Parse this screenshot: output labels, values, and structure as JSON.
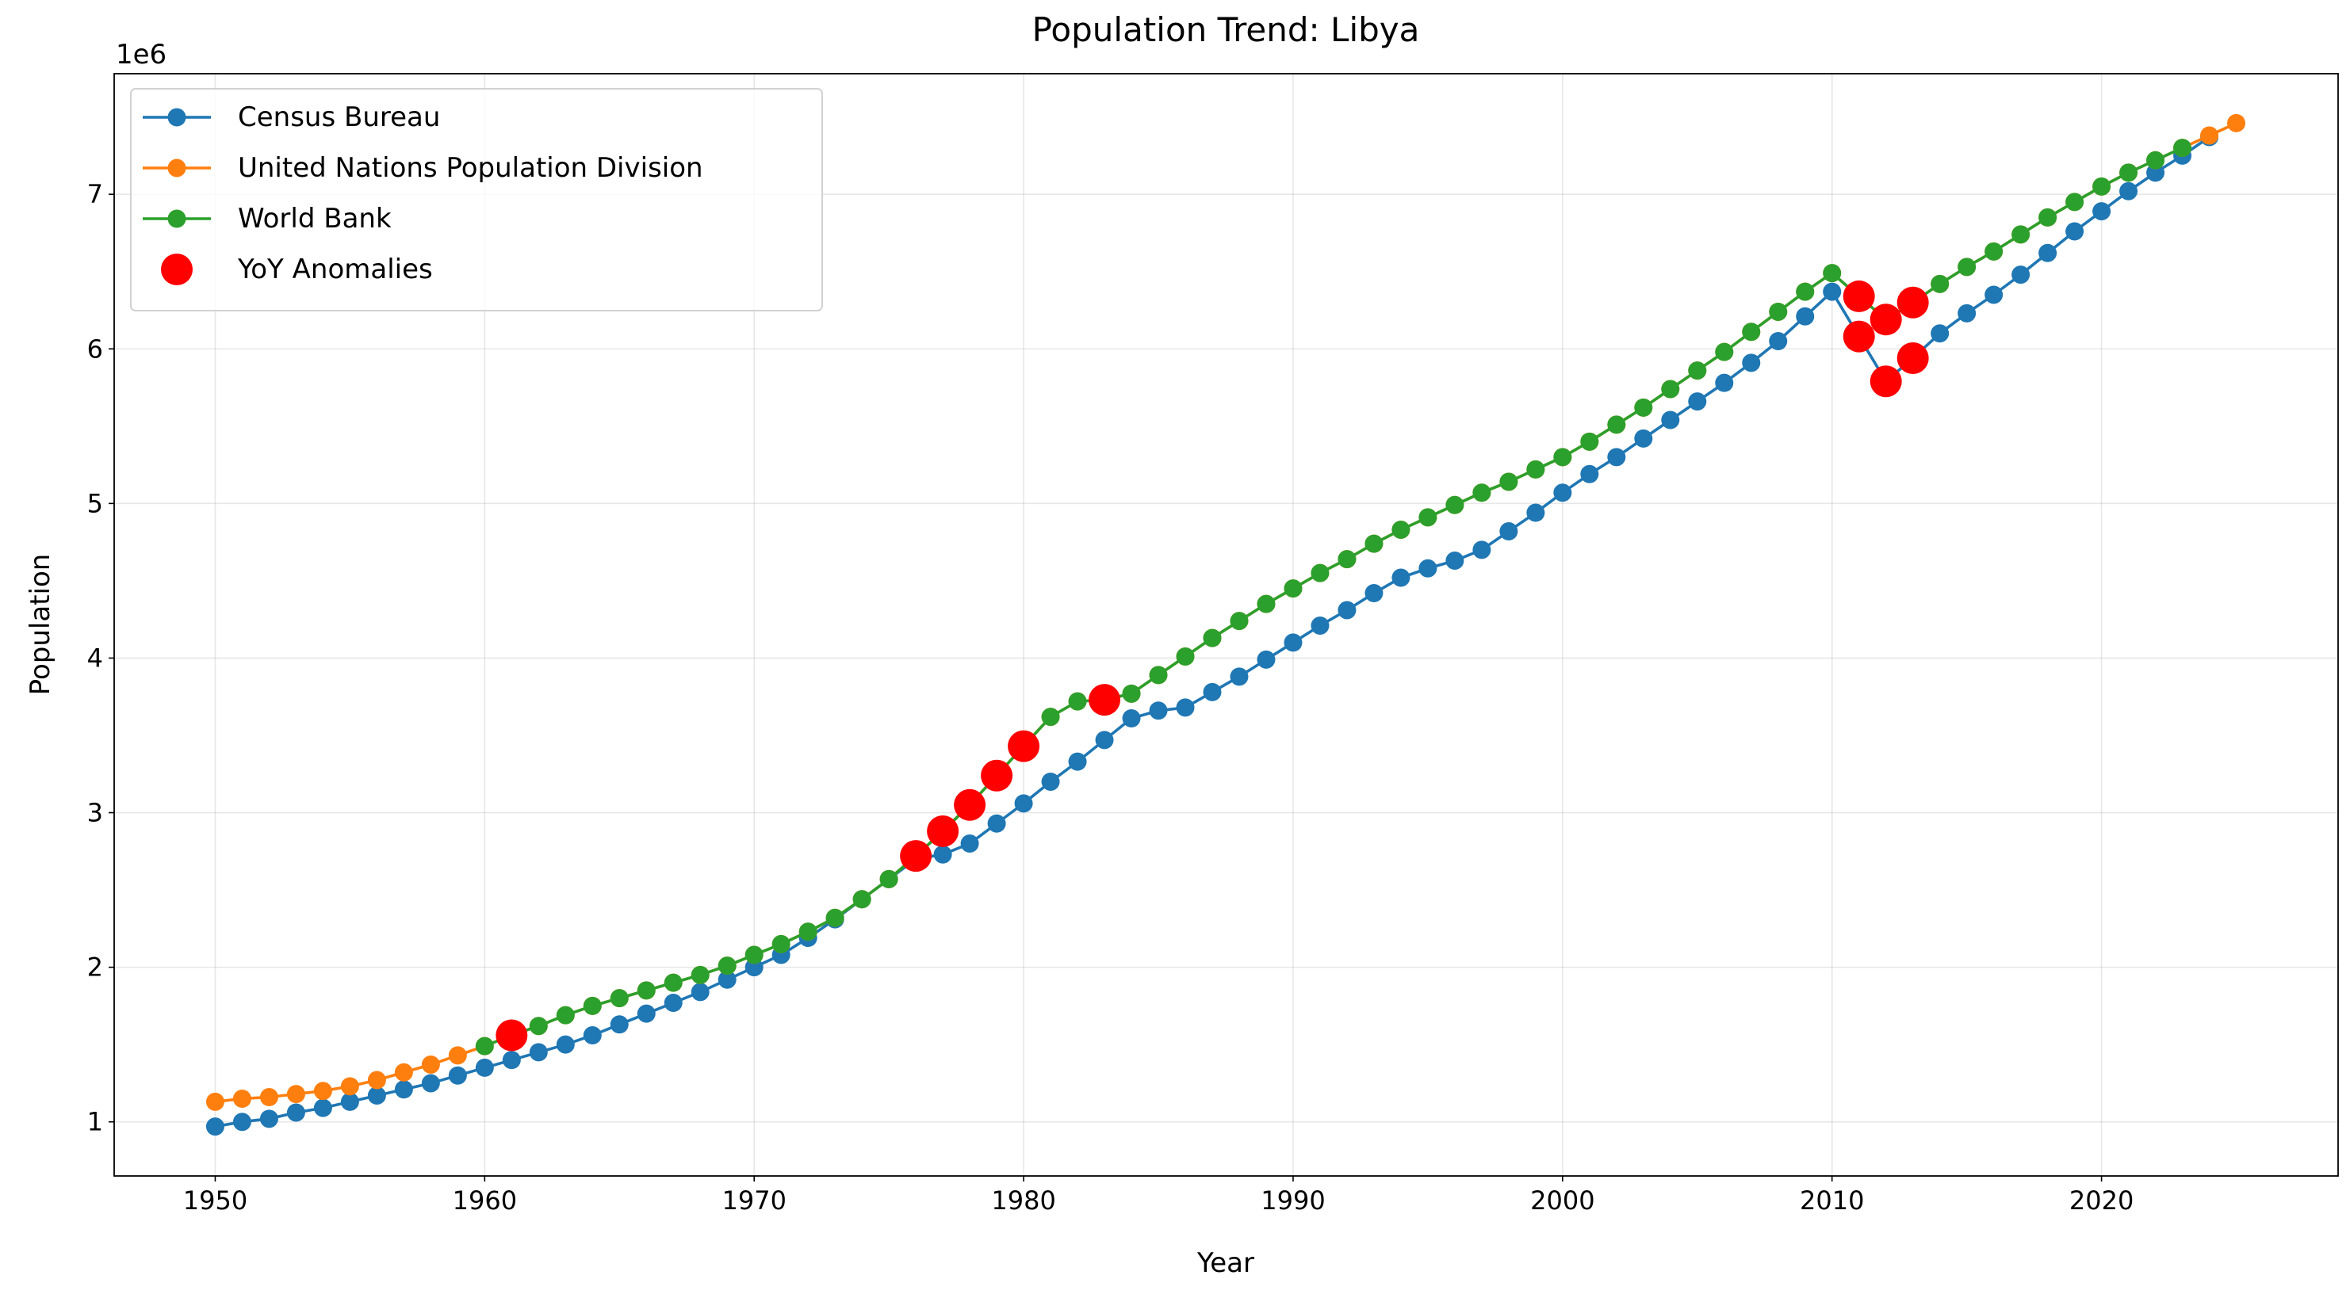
{
  "chart_data": {
    "type": "line",
    "title": "Population Trend: Libya",
    "xlabel": "Year",
    "ylabel": "Population",
    "y_offset_label": "1e6",
    "xlim": [
      1946.25,
      2028.78
    ],
    "ylim": [
      650000,
      7780000
    ],
    "xticks": [
      1950,
      1960,
      1970,
      1980,
      1990,
      2000,
      2010,
      2020
    ],
    "yticks": [
      {
        "value": 1000000,
        "label": "1"
      },
      {
        "value": 2000000,
        "label": "2"
      },
      {
        "value": 3000000,
        "label": "3"
      },
      {
        "value": 4000000,
        "label": "4"
      },
      {
        "value": 5000000,
        "label": "5"
      },
      {
        "value": 6000000,
        "label": "6"
      },
      {
        "value": 7000000,
        "label": "7"
      }
    ],
    "grid": true,
    "legend": "upper left",
    "series": [
      {
        "name": "Census Bureau",
        "color": "#1f77b4",
        "mode": "lines+markers",
        "x": [
          1950,
          1951,
          1952,
          1953,
          1954,
          1955,
          1956,
          1957,
          1958,
          1959,
          1960,
          1961,
          1962,
          1963,
          1964,
          1965,
          1966,
          1967,
          1968,
          1969,
          1970,
          1971,
          1972,
          1973,
          1974,
          1975,
          1976,
          1977,
          1978,
          1979,
          1980,
          1981,
          1982,
          1983,
          1984,
          1985,
          1986,
          1987,
          1988,
          1989,
          1990,
          1991,
          1992,
          1993,
          1994,
          1995,
          1996,
          1997,
          1998,
          1999,
          2000,
          2001,
          2002,
          2003,
          2004,
          2005,
          2006,
          2007,
          2008,
          2009,
          2010,
          2011,
          2012,
          2013,
          2014,
          2015,
          2016,
          2017,
          2018,
          2019,
          2020,
          2021,
          2022,
          2023,
          2024
        ],
        "values": [
          970000,
          1000000,
          1020000,
          1060000,
          1090000,
          1130000,
          1170000,
          1210000,
          1250000,
          1300000,
          1350000,
          1400000,
          1450000,
          1500000,
          1560000,
          1630000,
          1700000,
          1770000,
          1840000,
          1920000,
          2000000,
          2080000,
          2190000,
          2310000,
          2440000,
          2570000,
          2700000,
          2730000,
          2800000,
          2930000,
          3060000,
          3200000,
          3330000,
          3470000,
          3610000,
          3660000,
          3680000,
          3780000,
          3880000,
          3990000,
          4100000,
          4210000,
          4310000,
          4420000,
          4520000,
          4580000,
          4630000,
          4700000,
          4820000,
          4940000,
          5070000,
          5190000,
          5300000,
          5420000,
          5540000,
          5660000,
          5780000,
          5910000,
          6050000,
          6210000,
          6370000,
          6080000,
          5790000,
          5940000,
          6100000,
          6230000,
          6350000,
          6480000,
          6620000,
          6760000,
          6890000,
          7020000,
          7140000,
          7250000,
          7370000
        ]
      },
      {
        "name": "United Nations Population Division",
        "color": "#ff7f0e",
        "mode": "lines+markers",
        "x": [
          1950,
          1951,
          1952,
          1953,
          1954,
          1955,
          1956,
          1957,
          1958,
          1959,
          1960,
          1961,
          1962,
          1963,
          1964,
          1965,
          1966,
          1967,
          1968,
          1969,
          1970,
          1971,
          1972,
          1973,
          1974,
          1975,
          1976,
          1977,
          1978,
          1979,
          1980,
          1981,
          1982,
          1983,
          1984,
          1985,
          1986,
          1987,
          1988,
          1989,
          1990,
          1991,
          1992,
          1993,
          1994,
          1995,
          1996,
          1997,
          1998,
          1999,
          2000,
          2001,
          2002,
          2003,
          2004,
          2005,
          2006,
          2007,
          2008,
          2009,
          2010,
          2011,
          2012,
          2013,
          2014,
          2015,
          2016,
          2017,
          2018,
          2019,
          2020,
          2021,
          2022,
          2023,
          2024,
          2025
        ],
        "values": [
          1130000,
          1150000,
          1160000,
          1180000,
          1200000,
          1230000,
          1270000,
          1320000,
          1370000,
          1430000,
          1490000,
          1560000,
          1620000,
          1690000,
          1750000,
          1800000,
          1850000,
          1900000,
          1950000,
          2010000,
          2080000,
          2150000,
          2230000,
          2320000,
          2440000,
          2570000,
          2720000,
          2880000,
          3050000,
          3240000,
          3430000,
          3620000,
          3720000,
          3730000,
          3770000,
          3890000,
          4010000,
          4130000,
          4240000,
          4350000,
          4450000,
          4550000,
          4640000,
          4740000,
          4830000,
          4910000,
          4990000,
          5070000,
          5140000,
          5220000,
          5300000,
          5400000,
          5510000,
          5620000,
          5740000,
          5860000,
          5980000,
          6110000,
          6240000,
          6370000,
          6490000,
          6340000,
          6190000,
          6300000,
          6420000,
          6530000,
          6630000,
          6740000,
          6850000,
          6950000,
          7050000,
          7140000,
          7220000,
          7300000,
          7380000,
          7460000
        ]
      },
      {
        "name": "World Bank",
        "color": "#2ca02c",
        "mode": "lines+markers",
        "x": [
          1960,
          1961,
          1962,
          1963,
          1964,
          1965,
          1966,
          1967,
          1968,
          1969,
          1970,
          1971,
          1972,
          1973,
          1974,
          1975,
          1976,
          1977,
          1978,
          1979,
          1980,
          1981,
          1982,
          1983,
          1984,
          1985,
          1986,
          1987,
          1988,
          1989,
          1990,
          1991,
          1992,
          1993,
          1994,
          1995,
          1996,
          1997,
          1998,
          1999,
          2000,
          2001,
          2002,
          2003,
          2004,
          2005,
          2006,
          2007,
          2008,
          2009,
          2010,
          2011,
          2012,
          2013,
          2014,
          2015,
          2016,
          2017,
          2018,
          2019,
          2020,
          2021,
          2022,
          2023
        ],
        "values": [
          1490000,
          1560000,
          1620000,
          1690000,
          1750000,
          1800000,
          1850000,
          1900000,
          1950000,
          2010000,
          2080000,
          2150000,
          2230000,
          2320000,
          2440000,
          2570000,
          2720000,
          2880000,
          3050000,
          3240000,
          3430000,
          3620000,
          3720000,
          3730000,
          3770000,
          3890000,
          4010000,
          4130000,
          4240000,
          4350000,
          4450000,
          4550000,
          4640000,
          4740000,
          4830000,
          4910000,
          4990000,
          5070000,
          5140000,
          5220000,
          5300000,
          5400000,
          5510000,
          5620000,
          5740000,
          5860000,
          5980000,
          6110000,
          6240000,
          6370000,
          6490000,
          6340000,
          6190000,
          6300000,
          6420000,
          6530000,
          6630000,
          6740000,
          6850000,
          6950000,
          7050000,
          7140000,
          7220000,
          7300000
        ]
      },
      {
        "name": "YoY Anomalies",
        "color": "#ff0000",
        "mode": "markers",
        "x": [
          1961,
          1976,
          1977,
          1978,
          1979,
          1980,
          1983,
          2011,
          2011,
          2012,
          2012,
          2013,
          2013
        ],
        "values": [
          1560000,
          2720000,
          2880000,
          3050000,
          3240000,
          3430000,
          3730000,
          6340000,
          6080000,
          6190000,
          5790000,
          6300000,
          5940000
        ]
      }
    ]
  }
}
